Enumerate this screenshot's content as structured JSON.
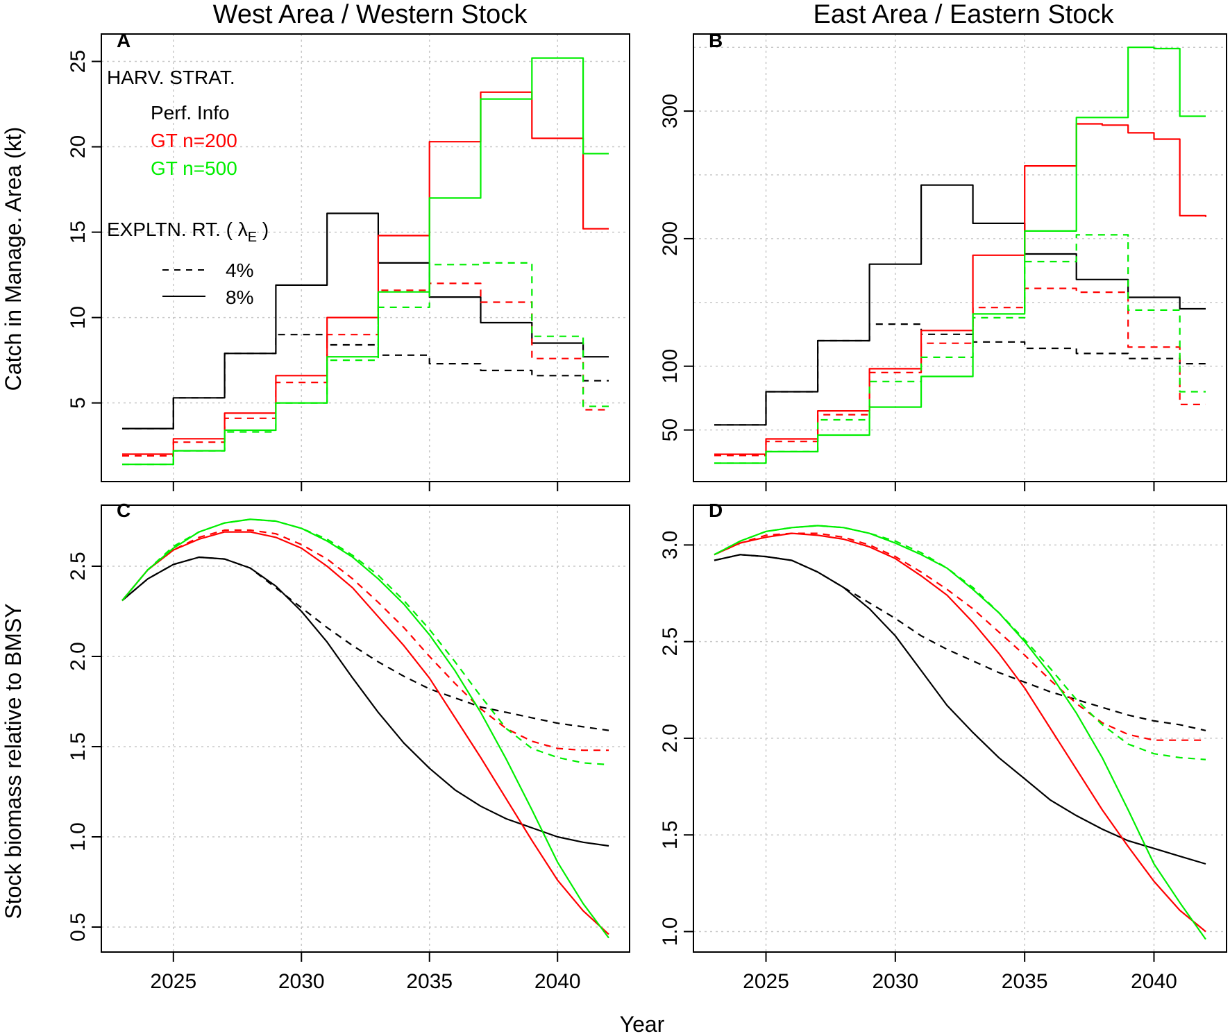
{
  "figure": {
    "col_titles": [
      "West Area / Western Stock",
      "East Area / Eastern Stock"
    ],
    "xlabel": "Year",
    "ylabel_top": "Catch in Manage. Area (kt)",
    "ylabel_bottom": "Stock biomass relative to BMSY",
    "panel_labels": [
      "A",
      "B",
      "C",
      "D"
    ]
  },
  "legend": {
    "strategy_title": "HARV. STRAT.",
    "strategies": [
      {
        "label": "Perf. Info",
        "color": "#000000"
      },
      {
        "label": "GT n=200",
        "color": "#ff0000"
      },
      {
        "label": "GT n=500",
        "color": "#00ee00"
      }
    ],
    "rate_title": "EXPLTN. RT. ( λ",
    "rate_subscript": "E",
    "rate_close": " )",
    "rates": [
      {
        "label": "4%",
        "dash": "dashed"
      },
      {
        "label": "8%",
        "dash": "solid"
      }
    ]
  },
  "chart_data": [
    {
      "id": "A",
      "type": "line",
      "step": true,
      "title": "West Area / Western Stock",
      "xlabel": "",
      "ylabel": "Catch in Manage. Area (kt)",
      "xlim": [
        2023,
        2042
      ],
      "ylim": [
        0.8,
        26.2
      ],
      "xticks": [
        2025,
        2030,
        2035,
        2040
      ],
      "yticks": [
        5,
        10,
        15,
        20,
        25
      ],
      "x": [
        2023,
        2024,
        2025,
        2026,
        2027,
        2028,
        2029,
        2030,
        2031,
        2032,
        2033,
        2034,
        2035,
        2036,
        2037,
        2038,
        2039,
        2040,
        2041,
        2042
      ],
      "series": [
        {
          "name": "Perf. Info 4%",
          "color": "#000000",
          "dash": "dashed",
          "values": [
            3.5,
            3.5,
            5.3,
            5.3,
            7.9,
            7.9,
            9.0,
            9.0,
            8.4,
            8.4,
            7.8,
            7.8,
            7.3,
            7.3,
            6.9,
            6.9,
            6.6,
            6.6,
            6.3,
            6.3
          ]
        },
        {
          "name": "Perf. Info 8%",
          "color": "#000000",
          "dash": "solid",
          "values": [
            3.5,
            3.5,
            5.3,
            5.3,
            7.9,
            7.9,
            11.9,
            11.9,
            16.1,
            16.1,
            13.2,
            13.2,
            11.2,
            11.2,
            9.7,
            9.7,
            8.5,
            8.5,
            7.7,
            7.7
          ]
        },
        {
          "name": "GT n=200 4%",
          "color": "#ff0000",
          "dash": "dashed",
          "values": [
            1.9,
            1.9,
            2.7,
            2.7,
            4.1,
            4.1,
            6.2,
            6.2,
            9.0,
            9.0,
            11.6,
            11.6,
            12.0,
            12.0,
            10.9,
            10.9,
            7.6,
            7.6,
            4.6,
            4.6
          ]
        },
        {
          "name": "GT n=200 8%",
          "color": "#ff0000",
          "dash": "solid",
          "values": [
            2.0,
            2.0,
            2.9,
            2.9,
            4.4,
            4.4,
            6.6,
            6.6,
            10.0,
            10.0,
            14.8,
            14.8,
            20.3,
            20.3,
            23.2,
            23.2,
            20.5,
            20.5,
            15.2,
            15.2
          ]
        },
        {
          "name": "GT n=500 4%",
          "color": "#00ee00",
          "dash": "dashed",
          "values": [
            1.4,
            1.4,
            2.2,
            2.2,
            3.3,
            3.3,
            5.0,
            5.0,
            7.5,
            7.5,
            10.6,
            10.6,
            13.1,
            13.1,
            13.2,
            13.2,
            8.9,
            8.9,
            4.8,
            4.8
          ]
        },
        {
          "name": "GT n=500 8%",
          "color": "#00ee00",
          "dash": "solid",
          "values": [
            1.4,
            1.4,
            2.2,
            2.2,
            3.4,
            3.4,
            5.0,
            5.0,
            7.7,
            7.7,
            11.5,
            11.5,
            17.0,
            17.0,
            22.8,
            22.8,
            25.2,
            25.2,
            19.6,
            19.6
          ]
        }
      ]
    },
    {
      "id": "B",
      "type": "line",
      "step": true,
      "title": "East Area / Eastern Stock",
      "xlabel": "",
      "ylabel": "",
      "xlim": [
        2023,
        2042
      ],
      "ylim": [
        15,
        355
      ],
      "xticks": [
        2025,
        2030,
        2035,
        2040
      ],
      "yticks": [
        50,
        100,
        200,
        300
      ],
      "ygrid": [
        50,
        100,
        150,
        200,
        250,
        300,
        350
      ],
      "x": [
        2023,
        2024,
        2025,
        2026,
        2027,
        2028,
        2029,
        2030,
        2031,
        2032,
        2033,
        2034,
        2035,
        2036,
        2037,
        2038,
        2039,
        2040,
        2041,
        2042
      ],
      "series": [
        {
          "name": "Perf. Info 4%",
          "color": "#000000",
          "dash": "dashed",
          "values": [
            54,
            54,
            80,
            80,
            120,
            120,
            133,
            133,
            125,
            125,
            119,
            119,
            114,
            114,
            110,
            110,
            106,
            106,
            102,
            102
          ]
        },
        {
          "name": "Perf. Info 8%",
          "color": "#000000",
          "dash": "solid",
          "values": [
            54,
            54,
            80,
            80,
            120,
            120,
            180,
            180,
            242,
            242,
            212,
            212,
            188,
            188,
            168,
            168,
            154,
            154,
            145,
            145
          ]
        },
        {
          "name": "GT n=200 4%",
          "color": "#ff0000",
          "dash": "dashed",
          "values": [
            30,
            30,
            41,
            41,
            62,
            62,
            95,
            95,
            118,
            118,
            146,
            146,
            161,
            161,
            158,
            158,
            115,
            115,
            70,
            70
          ]
        },
        {
          "name": "GT n=200 8%",
          "color": "#ff0000",
          "dash": "solid",
          "values": [
            31,
            31,
            43,
            43,
            65,
            65,
            98,
            98,
            128,
            128,
            187,
            187,
            257,
            257,
            290,
            289,
            283,
            278,
            218,
            217
          ]
        },
        {
          "name": "GT n=500 4%",
          "color": "#00ee00",
          "dash": "dashed",
          "values": [
            24,
            24,
            33,
            33,
            58,
            58,
            88,
            88,
            107,
            107,
            138,
            138,
            182,
            182,
            203,
            203,
            144,
            144,
            80,
            80
          ]
        },
        {
          "name": "GT n=500 8%",
          "color": "#00ee00",
          "dash": "solid",
          "values": [
            24,
            24,
            33,
            33,
            46,
            46,
            68,
            68,
            92,
            92,
            141,
            141,
            206,
            206,
            295,
            295,
            350,
            349,
            296,
            296
          ]
        }
      ]
    },
    {
      "id": "C",
      "type": "line",
      "step": false,
      "title": "",
      "xlabel": "Year",
      "ylabel": "Stock biomass relative to BMSY",
      "xlim": [
        2023,
        2042
      ],
      "ylim": [
        0.4,
        2.8
      ],
      "xticks": [
        2025,
        2030,
        2035,
        2040
      ],
      "yticks": [
        0.5,
        1.0,
        1.5,
        2.0,
        2.5
      ],
      "x": [
        2023,
        2024,
        2025,
        2026,
        2027,
        2028,
        2029,
        2030,
        2031,
        2032,
        2033,
        2034,
        2035,
        2036,
        2037,
        2038,
        2039,
        2040,
        2041,
        2042
      ],
      "series": [
        {
          "name": "Perf. Info 4%",
          "color": "#000000",
          "dash": "dashed",
          "values": [
            2.31,
            2.43,
            2.51,
            2.55,
            2.54,
            2.49,
            2.38,
            2.27,
            2.16,
            2.06,
            1.97,
            1.89,
            1.82,
            1.77,
            1.72,
            1.69,
            1.66,
            1.63,
            1.61,
            1.59
          ]
        },
        {
          "name": "Perf. Info 8%",
          "color": "#000000",
          "dash": "solid",
          "values": [
            2.31,
            2.43,
            2.51,
            2.55,
            2.54,
            2.49,
            2.39,
            2.25,
            2.08,
            1.88,
            1.69,
            1.52,
            1.38,
            1.26,
            1.17,
            1.1,
            1.05,
            1.0,
            0.97,
            0.95
          ]
        },
        {
          "name": "GT n=200 4%",
          "color": "#ff0000",
          "dash": "dashed",
          "values": [
            2.31,
            2.48,
            2.59,
            2.66,
            2.7,
            2.7,
            2.68,
            2.62,
            2.54,
            2.43,
            2.3,
            2.16,
            2.0,
            1.85,
            1.71,
            1.6,
            1.53,
            1.49,
            1.48,
            1.48
          ]
        },
        {
          "name": "GT n=200 8%",
          "color": "#ff0000",
          "dash": "solid",
          "values": [
            2.31,
            2.48,
            2.59,
            2.65,
            2.69,
            2.69,
            2.66,
            2.6,
            2.5,
            2.38,
            2.22,
            2.06,
            1.88,
            1.66,
            1.44,
            1.21,
            0.98,
            0.76,
            0.59,
            0.46
          ]
        },
        {
          "name": "GT n=500 4%",
          "color": "#00ee00",
          "dash": "dashed",
          "values": [
            2.31,
            2.48,
            2.61,
            2.69,
            2.74,
            2.76,
            2.75,
            2.71,
            2.65,
            2.56,
            2.45,
            2.31,
            2.15,
            1.97,
            1.78,
            1.6,
            1.49,
            1.44,
            1.41,
            1.4
          ]
        },
        {
          "name": "GT n=500 8%",
          "color": "#00ee00",
          "dash": "solid",
          "values": [
            2.31,
            2.48,
            2.6,
            2.69,
            2.74,
            2.76,
            2.75,
            2.71,
            2.64,
            2.55,
            2.43,
            2.29,
            2.12,
            1.92,
            1.69,
            1.43,
            1.15,
            0.86,
            0.63,
            0.44
          ]
        }
      ]
    },
    {
      "id": "D",
      "type": "line",
      "step": false,
      "title": "",
      "xlabel": "Year",
      "ylabel": "",
      "xlim": [
        2023,
        2042
      ],
      "ylim": [
        0.93,
        3.17
      ],
      "xticks": [
        2025,
        2030,
        2035,
        2040
      ],
      "yticks": [
        1.0,
        1.5,
        2.0,
        2.5,
        3.0
      ],
      "x": [
        2023,
        2024,
        2025,
        2026,
        2027,
        2028,
        2029,
        2030,
        2031,
        2032,
        2033,
        2034,
        2035,
        2036,
        2037,
        2038,
        2039,
        2040,
        2041,
        2042
      ],
      "series": [
        {
          "name": "Perf. Info 4%",
          "color": "#000000",
          "dash": "dashed",
          "values": [
            2.92,
            2.95,
            2.94,
            2.92,
            2.86,
            2.78,
            2.7,
            2.62,
            2.53,
            2.46,
            2.4,
            2.34,
            2.29,
            2.24,
            2.2,
            2.16,
            2.12,
            2.09,
            2.07,
            2.04
          ]
        },
        {
          "name": "Perf. Info 8%",
          "color": "#000000",
          "dash": "solid",
          "values": [
            2.92,
            2.95,
            2.94,
            2.92,
            2.86,
            2.78,
            2.67,
            2.53,
            2.35,
            2.17,
            2.03,
            1.9,
            1.79,
            1.68,
            1.6,
            1.53,
            1.47,
            1.43,
            1.39,
            1.35
          ]
        },
        {
          "name": "GT n=200 4%",
          "color": "#ff0000",
          "dash": "dashed",
          "values": [
            2.95,
            3.01,
            3.05,
            3.06,
            3.06,
            3.04,
            3.0,
            2.94,
            2.86,
            2.77,
            2.67,
            2.55,
            2.43,
            2.3,
            2.18,
            2.08,
            2.02,
            1.99,
            1.99,
            1.99
          ]
        },
        {
          "name": "GT n=200 8%",
          "color": "#ff0000",
          "dash": "solid",
          "values": [
            2.95,
            3.01,
            3.04,
            3.06,
            3.05,
            3.03,
            2.99,
            2.93,
            2.84,
            2.74,
            2.6,
            2.44,
            2.26,
            2.05,
            1.84,
            1.63,
            1.44,
            1.26,
            1.11,
            1.0
          ]
        },
        {
          "name": "GT n=500 4%",
          "color": "#00ee00",
          "dash": "dashed",
          "values": [
            2.95,
            3.02,
            3.07,
            3.09,
            3.1,
            3.09,
            3.06,
            3.02,
            2.96,
            2.88,
            2.78,
            2.65,
            2.51,
            2.36,
            2.2,
            2.07,
            1.97,
            1.92,
            1.9,
            1.89
          ]
        },
        {
          "name": "GT n=500 8%",
          "color": "#00ee00",
          "dash": "solid",
          "values": [
            2.95,
            3.02,
            3.07,
            3.09,
            3.1,
            3.09,
            3.06,
            3.01,
            2.95,
            2.88,
            2.77,
            2.65,
            2.5,
            2.33,
            2.13,
            1.9,
            1.63,
            1.35,
            1.15,
            0.96
          ]
        }
      ]
    }
  ]
}
